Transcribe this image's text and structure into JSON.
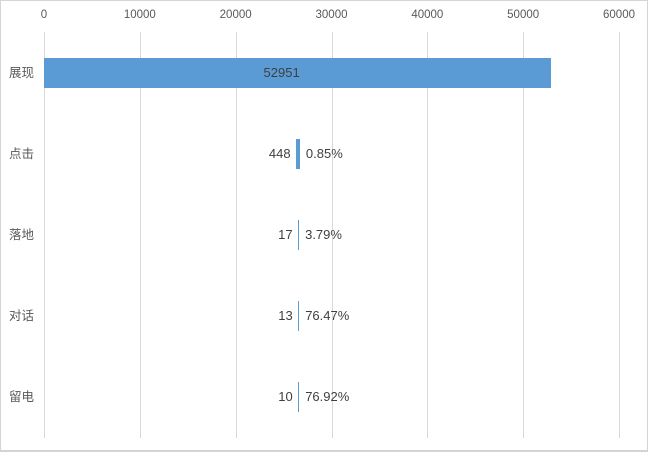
{
  "colors": {
    "bar": "#5B9BD5",
    "gridline": "#D9D9D9",
    "axis_text": "#595959",
    "label_text": "#3F3F3F",
    "border": "#D4D4D4",
    "background": "#FFFFFF"
  },
  "chart_data": {
    "type": "bar",
    "orientation": "horizontal",
    "style": "centered-funnel",
    "title": "",
    "categories": [
      "展现",
      "点击",
      "落地",
      "对话",
      "留电"
    ],
    "values": [
      52951,
      448,
      17,
      13,
      10
    ],
    "value_labels": [
      "52951",
      "448",
      "17",
      "13",
      "10"
    ],
    "conversion_labels": [
      "",
      "0.85%",
      "3.79%",
      "76.47%",
      "76.92%"
    ],
    "x_ticks": [
      0,
      10000,
      20000,
      30000,
      40000,
      50000,
      60000
    ],
    "x_tick_labels": [
      "0",
      "10000",
      "20000",
      "30000",
      "40000",
      "50000",
      "60000"
    ],
    "xlim": [
      0,
      60000
    ],
    "axis_position": "top",
    "grid": true,
    "legend": false,
    "funnel_center_value": 26475.5
  }
}
